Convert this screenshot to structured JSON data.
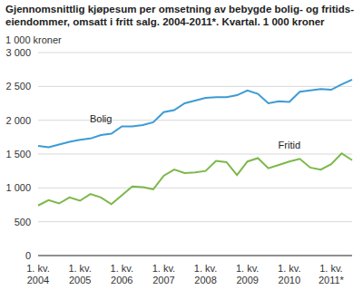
{
  "chart_data": {
    "type": "line",
    "title": "Gjennomsnittlig kjøpesum per omsetning av bebygde bolig- og fritids-\neiendommer, omsatt i fritt salg. 2004-2011*. Kvartal. 1 000 kroner",
    "y_label": "1 000 kroner",
    "categories": [
      "1. kv. 2004",
      null,
      null,
      null,
      "1. kv. 2005",
      null,
      null,
      null,
      "1. kv. 2006",
      null,
      null,
      null,
      "1. kv. 2007",
      null,
      null,
      null,
      "1. kv. 2008",
      null,
      null,
      null,
      "1. kv. 2009",
      null,
      null,
      null,
      "1. kv. 2010",
      null,
      null,
      null,
      "1. kv. 2011*",
      null,
      null
    ],
    "series": [
      {
        "name": "Bolig",
        "color": "#3c9bd4",
        "values": [
          1620,
          1600,
          1640,
          1680,
          1710,
          1730,
          1780,
          1800,
          1910,
          1910,
          1930,
          1970,
          2120,
          2150,
          2250,
          2290,
          2330,
          2340,
          2340,
          2370,
          2440,
          2390,
          2250,
          2280,
          2270,
          2420,
          2440,
          2460,
          2450,
          2530,
          2600
        ]
      },
      {
        "name": "Fritid",
        "color": "#7cb84a",
        "values": [
          740,
          820,
          770,
          860,
          810,
          910,
          860,
          760,
          890,
          1020,
          1010,
          980,
          1180,
          1270,
          1220,
          1230,
          1250,
          1400,
          1380,
          1190,
          1390,
          1440,
          1290,
          1340,
          1390,
          1430,
          1300,
          1270,
          1350,
          1510,
          1410
        ]
      }
    ],
    "ylim": [
      0,
      3000
    ],
    "yticks": [
      0,
      500,
      {
        "value": 1000,
        "label": "1 000"
      },
      {
        "value": 1500,
        "label": "1 500"
      },
      {
        "value": 2000,
        "label": "2 000"
      },
      {
        "value": 2500,
        "label": "2 500"
      },
      {
        "value": 3000,
        "label": "3 000"
      }
    ],
    "grid": true
  }
}
